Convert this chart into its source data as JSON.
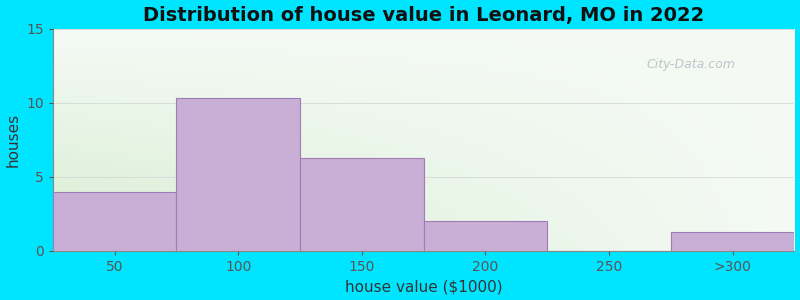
{
  "title": "Distribution of house value in Leonard, MO in 2022",
  "xlabel": "house value ($1000)",
  "ylabel": "houses",
  "bar_edges": [
    25,
    75,
    125,
    175,
    225,
    275,
    325
  ],
  "bar_heights": [
    4,
    10.3,
    6.3,
    2,
    0,
    1.3
  ],
  "xtick_positions": [
    50,
    100,
    150,
    200,
    250,
    300
  ],
  "xtick_labels": [
    "50",
    "100",
    "150",
    "200",
    "250",
    ">300"
  ],
  "bar_color": "#c9aed6",
  "bar_edgecolor": "#a07cb5",
  "ylim": [
    0,
    15
  ],
  "xlim": [
    25,
    325
  ],
  "yticks": [
    0,
    5,
    10,
    15
  ],
  "background_outer": "#00e5ff",
  "title_fontsize": 14,
  "axis_label_fontsize": 11,
  "tick_fontsize": 10,
  "gridline_color": "#cccccc",
  "gridline_alpha": 0.6,
  "watermark_text": "City-Data.com",
  "watermark_color": "#b0b8c0",
  "watermark_alpha": 0.8
}
